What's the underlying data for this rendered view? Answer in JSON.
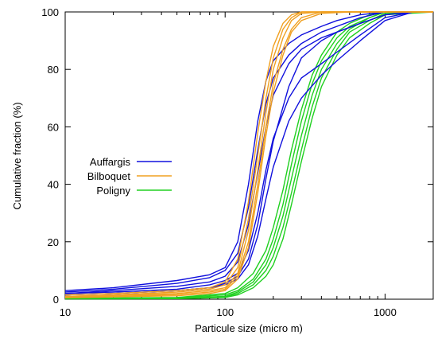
{
  "chart_data": {
    "type": "line",
    "title": "",
    "xlabel": "Particule size (micro m)",
    "ylabel": "Cumulative fraction (%)",
    "xscale": "log",
    "xlim": [
      10,
      2000
    ],
    "ylim": [
      0,
      100
    ],
    "x_ticks": [
      10,
      100,
      1000
    ],
    "x_tick_labels": [
      "10",
      "100",
      "1000"
    ],
    "y_ticks": [
      0,
      20,
      40,
      60,
      80,
      100
    ],
    "y_tick_labels": [
      "0",
      "20",
      "40",
      "60",
      "80",
      "100"
    ],
    "grid": false,
    "legend_position": "left-center",
    "groups": [
      {
        "name": "Auffargis",
        "color": "#1010dd",
        "curves": [
          {
            "x": [
              10,
              20,
              50,
              80,
              100,
              120,
              140,
              160,
              180,
              200,
              250,
              300,
              400,
              500,
              700,
              1000,
              1500,
              2000
            ],
            "y": [
              3,
              4,
              6.5,
              8.5,
              11,
              20,
              40,
              62,
              76,
              83,
              89,
              92,
              95,
              97,
              99,
              100,
              100,
              100
            ]
          },
          {
            "x": [
              10,
              20,
              50,
              80,
              100,
              120,
              140,
              160,
              180,
              200,
              250,
              300,
              400,
              500,
              700,
              1000,
              1500,
              2000
            ],
            "y": [
              2.5,
              3.5,
              5.5,
              7.5,
              10,
              16,
              32,
              52,
              68,
              77,
              85,
              89,
              93,
              95,
              98,
              100,
              100,
              100
            ]
          },
          {
            "x": [
              10,
              20,
              50,
              80,
              100,
              120,
              140,
              160,
              180,
              200,
              250,
              300,
              400,
              500,
              700,
              1000,
              1500,
              2000
            ],
            "y": [
              2,
              3,
              4.5,
              6,
              8,
              13,
              26,
              44,
              60,
              71,
              82,
              87,
              91,
              93,
              96,
              99,
              100,
              100
            ]
          },
          {
            "x": [
              10,
              20,
              50,
              80,
              100,
              120,
              140,
              160,
              180,
              200,
              250,
              300,
              400,
              500,
              700,
              1000,
              1500,
              2000
            ],
            "y": [
              2,
              2.5,
              3.5,
              5,
              6.5,
              9,
              17,
              30,
              45,
              56,
              70,
              77,
              82,
              86,
              92,
              98,
              100,
              100
            ]
          },
          {
            "x": [
              10,
              20,
              50,
              80,
              100,
              120,
              140,
              160,
              180,
              200,
              250,
              300,
              400,
              500,
              700,
              1000,
              1500,
              2000
            ],
            "y": [
              1.5,
              2,
              3,
              4,
              5,
              7,
              12,
              22,
              35,
              46,
              62,
              70,
              78,
              83,
              90,
              97,
              100,
              100
            ]
          },
          {
            "x": [
              10,
              20,
              50,
              80,
              100,
              120,
              140,
              160,
              180,
              200,
              250,
              300,
              400,
              500,
              700,
              1000,
              1500,
              2000
            ],
            "y": [
              1.5,
              2,
              3,
              4,
              5.5,
              8,
              14,
              26,
              42,
              55,
              74,
              84,
              90,
              93,
              96,
              99,
              100,
              100
            ]
          }
        ]
      },
      {
        "name": "Bilboquet",
        "color": "#f0a020",
        "curves": [
          {
            "x": [
              10,
              20,
              50,
              80,
              100,
              120,
              140,
              160,
              180,
              200,
              230,
              260,
              300,
              400,
              600,
              1000,
              2000
            ],
            "y": [
              1.5,
              2,
              3,
              4,
              6,
              14,
              34,
              58,
              76,
              88,
              96,
              99,
              100,
              100,
              100,
              100,
              100
            ]
          },
          {
            "x": [
              10,
              20,
              50,
              80,
              100,
              120,
              140,
              160,
              180,
              200,
              230,
              260,
              300,
              400,
              600,
              1000,
              2000
            ],
            "y": [
              1,
              1.5,
              2.5,
              3.5,
              5,
              11,
              28,
              50,
              70,
              84,
              94,
              98,
              100,
              100,
              100,
              100,
              100
            ]
          },
          {
            "x": [
              10,
              20,
              50,
              80,
              100,
              120,
              140,
              160,
              180,
              200,
              230,
              260,
              300,
              400,
              600,
              1000,
              2000
            ],
            "y": [
              1,
              1.3,
              2,
              3,
              4,
              9,
              24,
              45,
              65,
              80,
              91,
              97,
              99.5,
              100,
              100,
              100,
              100
            ]
          },
          {
            "x": [
              10,
              20,
              50,
              80,
              100,
              120,
              140,
              160,
              180,
              200,
              230,
              260,
              300,
              400,
              600,
              1000,
              2000
            ],
            "y": [
              0.8,
              1,
              1.6,
              2.5,
              3.5,
              8,
              20,
              40,
              60,
              75,
              87,
              94,
              98,
              100,
              100,
              100,
              100
            ]
          },
          {
            "x": [
              10,
              20,
              50,
              80,
              100,
              120,
              140,
              160,
              180,
              200,
              230,
              260,
              300,
              400,
              600,
              1000,
              2000
            ],
            "y": [
              0.5,
              0.8,
              1.2,
              2,
              3,
              7,
              18,
              37,
              57,
              72,
              85,
              93,
              97,
              99.5,
              100,
              100,
              100
            ]
          }
        ]
      },
      {
        "name": "Poligny",
        "color": "#20d020",
        "curves": [
          {
            "x": [
              10,
              50,
              100,
              120,
              150,
              180,
              200,
              230,
              260,
              300,
              350,
              400,
              500,
              600,
              800,
              1000,
              2000
            ],
            "y": [
              0.3,
              0.6,
              2,
              4,
              9,
              17,
              25,
              38,
              52,
              66,
              78,
              85,
              93,
              96,
              99,
              100,
              100
            ]
          },
          {
            "x": [
              10,
              50,
              100,
              120,
              150,
              180,
              200,
              230,
              260,
              300,
              350,
              400,
              500,
              600,
              800,
              1000,
              2000
            ],
            "y": [
              0.3,
              0.5,
              1.5,
              3,
              7,
              14,
              21,
              33,
              47,
              62,
              75,
              83,
              91,
              95,
              98,
              100,
              100
            ]
          },
          {
            "x": [
              10,
              50,
              100,
              120,
              150,
              180,
              200,
              230,
              260,
              300,
              350,
              400,
              500,
              600,
              800,
              1000,
              2000
            ],
            "y": [
              0.2,
              0.4,
              1,
              2.5,
              6,
              12,
              18,
              29,
              42,
              57,
              71,
              80,
              89,
              94,
              98,
              100,
              100
            ]
          },
          {
            "x": [
              10,
              50,
              100,
              120,
              150,
              180,
              200,
              230,
              260,
              300,
              350,
              400,
              500,
              600,
              800,
              1000,
              2000
            ],
            "y": [
              0.2,
              0.3,
              0.8,
              2,
              5,
              10,
              15,
              25,
              37,
              52,
              67,
              77,
              87,
              93,
              97,
              99.5,
              100
            ]
          },
          {
            "x": [
              10,
              50,
              100,
              120,
              150,
              180,
              200,
              230,
              260,
              300,
              350,
              400,
              500,
              600,
              800,
              1000,
              2000
            ],
            "y": [
              0.1,
              0.2,
              0.6,
              1.5,
              4,
              8,
              12,
              21,
              33,
              48,
              63,
              74,
              85,
              91,
              96,
              99,
              100
            ]
          }
        ]
      }
    ]
  }
}
